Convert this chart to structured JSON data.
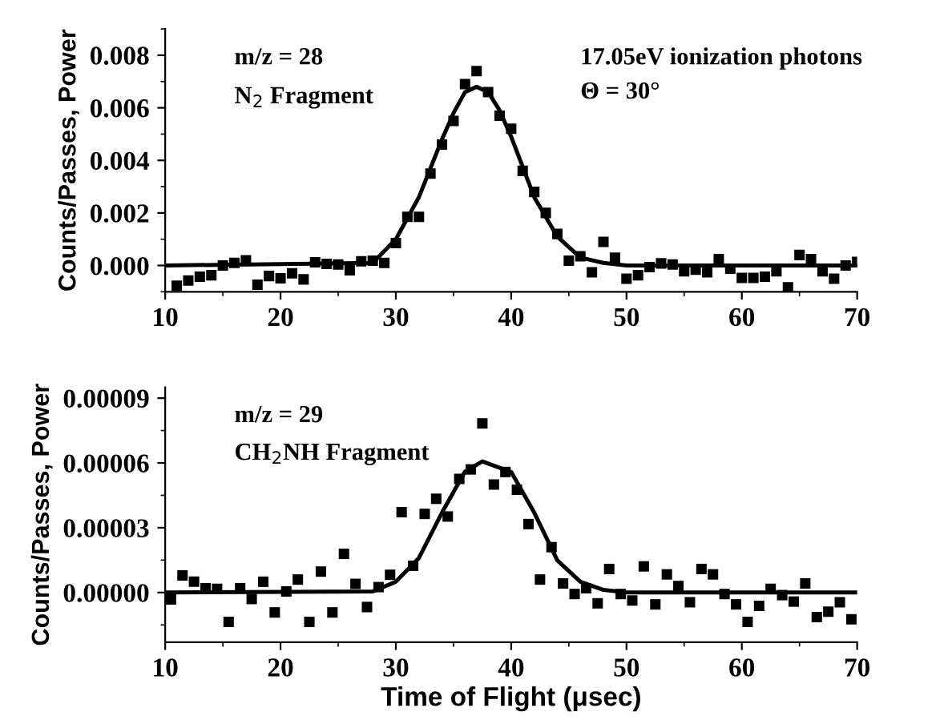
{
  "chart_data": [
    {
      "type": "scatter",
      "ylabel": "Counts/Passes, Power",
      "annotations": [
        "m/z = 28",
        "N$_{2}$ Fragment",
        "17.05eV ionization photons",
        "Θ = 30°"
      ],
      "xlim": [
        10,
        70
      ],
      "xticks": [
        10,
        20,
        30,
        40,
        50,
        60,
        70
      ],
      "ylim": [
        -0.001,
        0.009
      ],
      "yticks": [
        {
          "value": 0,
          "label": "0.000"
        },
        {
          "value": 0.002,
          "label": "0.002"
        },
        {
          "value": 0.004,
          "label": "0.004"
        },
        {
          "value": 0.006,
          "label": "0.006"
        },
        {
          "value": 0.008,
          "label": "0.008"
        }
      ],
      "grid": false,
      "legend": false,
      "series": [
        {
          "marker": "square",
          "color": "#000000",
          "x": [
            11,
            12,
            13,
            14,
            15,
            16,
            17,
            18,
            19,
            20,
            21,
            22,
            23,
            24,
            25,
            26,
            27,
            28,
            29,
            30,
            31,
            32,
            33,
            34,
            35,
            36,
            37,
            38,
            39,
            40,
            41,
            42,
            43,
            44,
            45,
            46,
            47,
            48,
            49,
            50,
            51,
            52,
            53,
            54,
            55,
            56,
            57,
            58,
            59,
            60,
            61,
            62,
            63,
            64,
            65,
            66,
            67,
            68,
            69,
            70
          ],
          "values": [
            -0.00077,
            -0.00057,
            -0.00043,
            -0.00037,
            0.0,
            0.0001,
            0.0002,
            -0.00073,
            -0.0004,
            -0.00049,
            -0.0003,
            -0.00053,
            0.00012,
            6e-05,
            4e-05,
            -0.00018,
            0.00016,
            0.00018,
            0.0001,
            0.00085,
            0.00185,
            0.00185,
            0.0035,
            0.0046,
            0.0055,
            0.0069,
            0.0074,
            0.0066,
            0.0057,
            0.0052,
            0.0036,
            0.0028,
            0.002,
            0.0012,
            0.00018,
            0.00035,
            -0.00026,
            0.0009,
            0.0003,
            -0.0005,
            -0.00037,
            -6e-05,
            8e-05,
            4e-05,
            -0.00022,
            -0.00016,
            -0.00026,
            0.00024,
            -0.00012,
            -0.00047,
            -0.00047,
            -0.00043,
            -0.00022,
            -0.00083,
            0.0004,
            0.00024,
            -0.00022,
            -0.0005,
            0.0,
            0.00014
          ]
        },
        {
          "type": "line",
          "line_style": "solid",
          "color": "#000000",
          "x": [
            10,
            28,
            30,
            32,
            34,
            35,
            36,
            37,
            38,
            39,
            40,
            42,
            44,
            46,
            48,
            50,
            70
          ],
          "values": [
            0,
            0.0001,
            0.001,
            0.0026,
            0.0048,
            0.0058,
            0.0066,
            0.0068,
            0.0066,
            0.0059,
            0.0049,
            0.0026,
            0.0011,
            0.0003,
            0.0001,
            0,
            0
          ]
        }
      ]
    },
    {
      "type": "scatter",
      "xlabel": "Time of Flight (μsec)",
      "ylabel": "Counts/Passes, Power",
      "annotations": [
        "m/z = 29",
        "CH$_{2}$NH Fragment"
      ],
      "xlim": [
        10,
        70
      ],
      "xticks": [
        10,
        20,
        30,
        40,
        50,
        60,
        70
      ],
      "ylim": [
        -2.3e-05,
        9.5e-05
      ],
      "yticks": [
        {
          "value": 0,
          "label": "0.00000"
        },
        {
          "value": 3e-05,
          "label": "0.00003"
        },
        {
          "value": 6e-05,
          "label": "0.00006"
        },
        {
          "value": 9e-05,
          "label": "0.00009"
        }
      ],
      "grid": false,
      "legend": false,
      "series": [
        {
          "marker": "square",
          "color": "#000000",
          "x": [
            10.5,
            11.5,
            12.5,
            13.5,
            14.5,
            15.5,
            16.5,
            17.5,
            18.5,
            19.5,
            20.5,
            21.5,
            22.5,
            23.5,
            24.5,
            25.5,
            26.5,
            27.5,
            28.5,
            29.5,
            30.5,
            31.5,
            32.5,
            33.5,
            34.5,
            35.5,
            36.5,
            37.5,
            38.5,
            39.5,
            40.5,
            41.5,
            42.5,
            43.5,
            44.5,
            45.5,
            46.5,
            47.5,
            48.5,
            49.5,
            50.5,
            51.5,
            52.5,
            53.5,
            54.5,
            55.5,
            56.5,
            57.5,
            58.5,
            59.5,
            60.5,
            61.5,
            62.5,
            63.5,
            64.5,
            65.5,
            66.5,
            67.5,
            68.5,
            69.5
          ],
          "values": [
            -3.2e-06,
            7.9e-06,
            5e-06,
            2e-06,
            1.7e-06,
            -1.36e-05,
            2e-06,
            -3e-06,
            5e-06,
            -9.2e-06,
            5e-07,
            6e-06,
            -1.36e-05,
            9.7e-06,
            -9.2e-06,
            1.79e-05,
            4e-06,
            -6.7e-06,
            2.5e-06,
            8.2e-06,
            3.72e-05,
            1.24e-05,
            3.64e-05,
            4.34e-05,
            3.52e-05,
            5.26e-05,
            5.7e-05,
            7.83e-05,
            5e-05,
            5.58e-05,
            4.76e-05,
            3.17e-05,
            6e-06,
            2.1e-05,
            4.2e-06,
            -7e-07,
            2e-06,
            -5e-06,
            1.09e-05,
            -7e-07,
            -3.7e-06,
            1.21e-05,
            -5.5e-06,
            8.4e-06,
            3e-06,
            -4.5e-06,
            1.09e-05,
            8.4e-06,
            -7e-07,
            -5.5e-06,
            -1.36e-05,
            -6.2e-06,
            1.7e-06,
            -1.2e-06,
            -4.2e-06,
            4.2e-06,
            -1.14e-05,
            -8.9e-06,
            -4.5e-06,
            -1.24e-05
          ]
        },
        {
          "type": "line",
          "line_style": "solid",
          "color": "#000000",
          "x": [
            10,
            28,
            30,
            32,
            34,
            36,
            37.5,
            40,
            42,
            44,
            46,
            48,
            50,
            70
          ],
          "values": [
            0,
            5e-07,
            5e-06,
            1.6e-05,
            3.7e-05,
            5.6e-05,
            6.07e-05,
            5.58e-05,
            3.7e-05,
            1.49e-05,
            5e-06,
            1.2e-06,
            0,
            0
          ]
        }
      ]
    }
  ]
}
